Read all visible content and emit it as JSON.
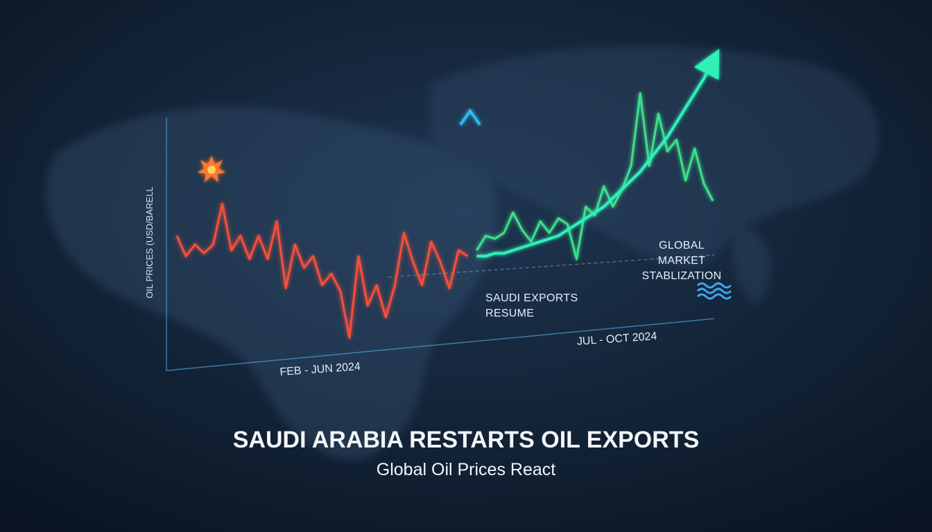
{
  "chart_data": {
    "type": "line",
    "title": "SAUDI ARABIA RESTARTS OIL EXPORTS",
    "subtitle": "Global Oil Prices React",
    "y_label": "OIL PRICES (USD/BARELL",
    "periods": [
      "FEB - JUN 2024",
      "JUL - OCT 2024"
    ],
    "annotations": [
      "SAUDI EXPORTS RESUME",
      "GLOBAL MARKET STABLIZATION"
    ],
    "categories": [
      null,
      null,
      null,
      null,
      null,
      null,
      null,
      null,
      null,
      null,
      null,
      null,
      null,
      null,
      null,
      null,
      null,
      null,
      null,
      null,
      null,
      null,
      null,
      null,
      null,
      null,
      null,
      null,
      null,
      null,
      null,
      null,
      null,
      null,
      null,
      null,
      null,
      null,
      null,
      null,
      null,
      null,
      null,
      null,
      null,
      null,
      null,
      null,
      null,
      null,
      null,
      null,
      null,
      null,
      null,
      null,
      null,
      null,
      null,
      null
    ],
    "ylim": [
      0,
      100
    ],
    "series": [
      {
        "color": "#f4503a",
        "values": [
          38,
          31,
          35,
          32,
          35,
          49,
          33,
          38,
          30,
          38,
          30,
          43,
          20,
          35,
          27,
          31,
          21,
          25,
          19,
          3,
          31,
          14,
          21,
          10,
          21,
          39,
          29,
          21,
          36,
          29,
          20,
          33,
          31,
          null,
          null,
          null,
          null,
          null,
          null,
          null,
          null,
          null,
          null,
          null,
          null,
          null,
          null,
          null,
          null,
          null,
          null,
          null,
          null,
          null,
          null,
          null,
          null,
          null,
          null,
          null
        ]
      },
      {
        "color": "#3ee08a",
        "values": [
          null,
          null,
          null,
          null,
          null,
          null,
          null,
          null,
          null,
          null,
          null,
          null,
          null,
          null,
          null,
          null,
          null,
          null,
          null,
          null,
          null,
          null,
          null,
          null,
          null,
          null,
          null,
          null,
          null,
          null,
          null,
          null,
          null,
          33,
          38,
          37,
          39,
          46,
          40,
          36,
          43,
          39,
          44,
          42,
          30,
          48,
          45,
          55,
          48,
          54,
          62,
          87,
          62,
          80,
          67,
          71,
          57,
          68,
          56,
          50
        ]
      },
      {
        "color": "#2ef0b8",
        "values": [
          null,
          null,
          null,
          null,
          null,
          null,
          null,
          null,
          null,
          null,
          null,
          null,
          null,
          null,
          null,
          null,
          null,
          null,
          null,
          null,
          null,
          null,
          null,
          null,
          null,
          null,
          null,
          null,
          null,
          null,
          null,
          null,
          null,
          31,
          31,
          32,
          32,
          33,
          34,
          35,
          36,
          37,
          38,
          40,
          42,
          44,
          46,
          48,
          51,
          54,
          57,
          60,
          64,
          68,
          72,
          77,
          82,
          87,
          92,
          98
        ]
      }
    ]
  }
}
